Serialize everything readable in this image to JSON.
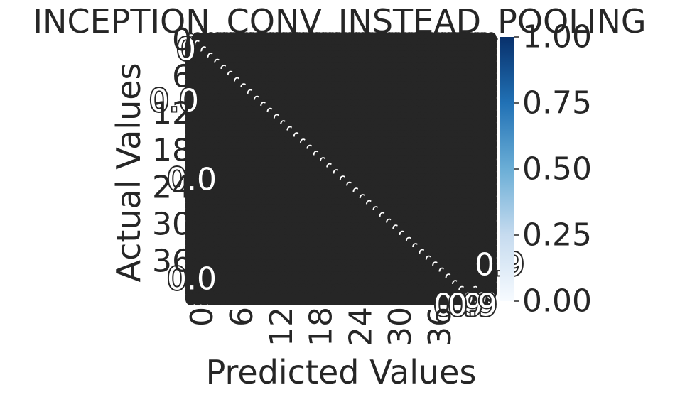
{
  "chart_data": {
    "type": "heatmap",
    "title": "INCEPTION_CONV_INSTEAD_POOLING",
    "xlabel": "Predicted Values",
    "ylabel": "Actual Values",
    "n_classes": 43,
    "x_tick_labels": [
      "0",
      "6",
      "12",
      "18",
      "24",
      "30",
      "36"
    ],
    "y_tick_labels": [
      "0",
      "6",
      "12",
      "18",
      "24",
      "30",
      "36"
    ],
    "x_tick_indices": [
      0,
      6,
      12,
      18,
      24,
      30,
      36
    ],
    "y_tick_indices": [
      0,
      6,
      12,
      18,
      24,
      30,
      36
    ],
    "colorbar": {
      "min": 0,
      "max": 1,
      "tick_labels": [
        "0.00",
        "0.25",
        "0.50",
        "0.75",
        "1.00"
      ],
      "tick_values": [
        0,
        0.25,
        0.5,
        0.75,
        1.0
      ]
    },
    "colormap": [
      "#f7fbff",
      "#deebf7",
      "#c6dbef",
      "#9ecae1",
      "#6baed6",
      "#4292c6",
      "#2171b5",
      "#08519c",
      "#08306b"
    ],
    "annotation_color": "#262626",
    "diagonal_value": 0.99,
    "off_diagonal_value": 0.0,
    "visible_annotation_fragments": [
      "0",
      "0.0",
      "0.0",
      "0.0",
      "0.9",
      "0.9",
      "0.9"
    ]
  }
}
